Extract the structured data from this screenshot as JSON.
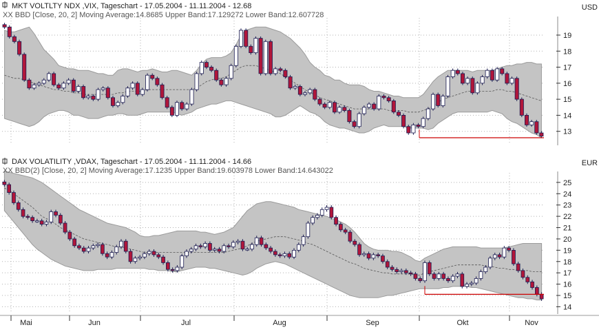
{
  "chart_data": [
    {
      "type": "candlestick",
      "header": "MKT VOLTLTY NDX  ,VIX, Tageschart - 17.05.2004 - 11.11.2004 - 12.68",
      "subheader": "XX BBD [Close, 20, 2] Moving Average:14.8685 Upper Band:17.129272 Lower Band:12.607728",
      "currency": "USD",
      "ylim": [
        12.3,
        19.9
      ],
      "yticks": [
        "13",
        "14",
        "15",
        "16",
        "17",
        "18",
        "19"
      ],
      "support_line": 12.6,
      "grid": true,
      "series": [
        {
          "name": "price",
          "close": [
            19.5,
            18.9,
            18.6,
            17.8,
            16.2,
            15.7,
            15.9,
            16.0,
            16.2,
            16.6,
            15.9,
            15.7,
            16.0,
            16.2,
            15.5,
            15.8,
            15.1,
            15.2,
            15.0,
            15.6,
            15.7,
            15.1,
            14.6,
            14.8,
            15.2,
            15.7,
            16.0,
            15.3,
            15.6,
            16.5,
            16.3,
            15.9,
            15.1,
            14.5,
            14.0,
            14.8,
            14.4,
            14.7,
            15.6,
            16.6,
            17.3,
            17.0,
            16.8,
            16.2,
            15.9,
            16.3,
            17.1,
            18.3,
            19.3,
            18.3,
            17.9,
            18.8,
            16.6,
            18.6,
            16.6,
            16.9,
            16.8,
            16.4,
            15.7,
            15.8,
            15.3,
            15.4,
            15.6,
            15.0,
            14.7,
            14.5,
            14.8,
            14.2,
            14.5,
            14.3,
            13.6,
            13.3,
            14.1,
            14.5,
            14.7,
            14.4,
            15.2,
            15.1,
            14.9,
            14.2,
            14.0,
            13.3,
            12.9,
            13.4,
            13.3,
            13.8,
            14.4,
            15.3,
            14.6,
            15.2,
            16.4,
            16.8,
            16.6,
            16.0,
            16.3,
            15.4,
            16.0,
            16.4,
            16.8,
            16.2,
            16.9,
            16.6,
            16.0,
            16.3,
            15.0,
            14.0,
            13.4,
            13.6,
            12.9,
            12.7
          ]
        }
      ],
      "bands": {
        "upper": [
          19.3,
          19.2,
          19.2,
          19.3,
          19.4,
          19.5,
          19.1,
          18.6,
          18.1,
          17.8,
          17.5,
          17.1,
          17.0,
          16.9,
          16.9,
          16.8,
          16.8,
          16.8,
          16.7,
          16.6,
          16.6,
          16.5,
          16.5,
          16.8,
          16.9,
          16.9,
          16.8,
          16.7,
          16.8,
          16.8,
          16.9,
          16.8,
          16.7,
          16.7,
          16.8,
          16.8,
          16.7,
          16.6,
          16.5,
          16.8,
          17.2,
          17.5,
          17.6,
          17.6,
          17.6,
          17.7,
          17.9,
          18.4,
          19.0,
          19.3,
          19.4,
          19.5,
          19.5,
          19.5,
          19.4,
          19.3,
          19.2,
          19.0,
          18.8,
          18.5,
          18.2,
          17.8,
          17.3,
          17.0,
          16.8,
          16.5,
          16.4,
          16.2,
          16.2,
          16.0,
          15.9,
          15.9,
          15.9,
          15.8,
          15.6,
          15.5,
          15.5,
          15.4,
          15.3,
          15.2,
          15.2,
          15.1,
          15.1,
          15.1,
          15.1,
          15.3,
          15.7,
          16.1,
          16.4,
          16.6,
          16.8,
          16.8,
          16.8,
          16.8,
          16.8,
          16.7,
          16.8,
          16.8,
          16.8,
          16.8,
          16.9,
          17.0,
          17.1,
          17.1,
          17.2,
          17.2,
          17.3,
          17.3,
          17.2,
          17.2
        ],
        "middle": [
          16.5,
          16.4,
          16.3,
          16.3,
          16.2,
          16.1,
          16.0,
          15.9,
          15.8,
          15.7,
          15.6,
          15.6,
          15.5,
          15.5,
          15.4,
          15.4,
          15.3,
          15.3,
          15.3,
          15.3,
          15.3,
          15.3,
          15.3,
          15.4,
          15.4,
          15.5,
          15.5,
          15.5,
          15.5,
          15.6,
          15.6,
          15.6,
          15.6,
          15.6,
          15.6,
          15.6,
          15.6,
          15.6,
          15.6,
          15.7,
          15.9,
          16.1,
          16.2,
          16.3,
          16.3,
          16.4,
          16.6,
          16.8,
          17.0,
          17.1,
          17.1,
          17.1,
          17.0,
          16.9,
          16.8,
          16.7,
          16.6,
          16.4,
          16.2,
          16.0,
          15.8,
          15.6,
          15.4,
          15.3,
          15.1,
          15.0,
          14.9,
          14.8,
          14.7,
          14.6,
          14.5,
          14.4,
          14.4,
          14.4,
          14.4,
          14.4,
          14.4,
          14.4,
          14.3,
          14.3,
          14.3,
          14.3,
          14.2,
          14.2,
          14.2,
          14.3,
          14.4,
          14.6,
          14.8,
          15.0,
          15.1,
          15.2,
          15.3,
          15.4,
          15.5,
          15.5,
          15.5,
          15.5,
          15.5,
          15.5,
          15.6,
          15.6,
          15.5,
          15.5,
          15.4,
          15.3,
          15.2,
          15.1,
          15.0,
          14.9
        ],
        "lower": [
          13.8,
          13.7,
          13.6,
          13.5,
          13.4,
          13.3,
          13.4,
          13.6,
          13.9,
          14.1,
          14.2,
          14.3,
          14.3,
          14.2,
          14.0,
          14.0,
          13.9,
          13.8,
          13.8,
          13.8,
          13.9,
          14.0,
          14.0,
          14.1,
          14.1,
          14.0,
          14.0,
          14.0,
          14.1,
          14.2,
          14.2,
          14.2,
          14.2,
          14.2,
          14.2,
          14.1,
          14.0,
          14.1,
          14.2,
          14.4,
          14.5,
          14.6,
          14.7,
          14.7,
          14.8,
          14.9,
          14.9,
          14.8,
          14.7,
          14.6,
          14.5,
          14.4,
          14.3,
          14.2,
          14.1,
          13.9,
          13.9,
          14.0,
          14.2,
          14.4,
          14.6,
          14.4,
          14.2,
          14.1,
          13.9,
          13.6,
          13.4,
          13.3,
          13.2,
          13.2,
          13.1,
          13.0,
          12.9,
          12.9,
          13.0,
          13.2,
          13.3,
          13.4,
          13.3,
          13.3,
          13.3,
          13.3,
          13.2,
          13.2,
          13.2,
          13.2,
          13.1,
          13.2,
          13.5,
          13.7,
          13.9,
          14.1,
          14.2,
          14.2,
          14.2,
          14.2,
          14.2,
          14.2,
          14.2,
          14.3,
          14.2,
          14.1,
          13.8,
          13.6,
          13.5,
          13.3,
          13.1,
          12.9,
          12.8,
          12.6
        ]
      }
    },
    {
      "type": "candlestick",
      "header": "DAX VOLATILITY    ,VDAX, Tageschart - 17.05.2004 - 11.11.2004 - 14.66",
      "subheader": "XX BBD(2) [Close, 20, 2] Moving Average:17.1235 Upper Band:19.603978 Lower Band:14.643022",
      "currency": "EUR",
      "ylim": [
        13.6,
        25.6
      ],
      "yticks": [
        "14",
        "15",
        "16",
        "17",
        "18",
        "19",
        "20",
        "21",
        "22",
        "23",
        "24",
        "25"
      ],
      "support_line": 15.1,
      "grid": true,
      "series": [
        {
          "name": "price",
          "close": [
            24.8,
            24.1,
            23.2,
            22.6,
            22.0,
            21.9,
            21.6,
            21.6,
            21.3,
            21.5,
            22.4,
            22.1,
            21.4,
            20.6,
            20.0,
            19.4,
            19.2,
            18.9,
            19.2,
            19.4,
            19.5,
            18.7,
            18.4,
            18.8,
            19.3,
            19.8,
            18.9,
            18.0,
            18.3,
            18.4,
            18.7,
            18.9,
            18.6,
            18.4,
            17.9,
            17.3,
            17.2,
            17.5,
            18.5,
            18.9,
            19.1,
            19.4,
            19.3,
            19.6,
            19.0,
            19.1,
            18.9,
            19.4,
            19.3,
            19.7,
            19.8,
            19.1,
            19.1,
            19.5,
            20.1,
            19.5,
            19.2,
            18.9,
            18.6,
            18.5,
            18.7,
            18.4,
            19.0,
            19.5,
            20.2,
            21.4,
            21.9,
            22.1,
            22.6,
            22.8,
            21.9,
            21.3,
            20.8,
            20.6,
            19.8,
            19.5,
            18.6,
            18.7,
            18.3,
            18.6,
            18.5,
            18.0,
            17.5,
            17.3,
            17.1,
            17.2,
            17.0,
            16.9,
            16.5,
            16.3,
            17.9,
            16.9,
            16.5,
            16.9,
            16.5,
            16.3,
            16.7,
            16.9,
            15.8,
            16.0,
            16.1,
            16.5,
            17.1,
            17.5,
            18.3,
            18.6,
            18.4,
            19.2,
            19.0,
            17.8,
            17.2,
            16.6,
            16.2,
            15.7,
            15.1,
            14.7
          ]
        }
      ],
      "bands": {
        "upper": [
          26.0,
          25.9,
          25.8,
          25.7,
          25.6,
          25.5,
          25.4,
          25.2,
          25.0,
          24.7,
          24.4,
          24.1,
          23.8,
          23.5,
          23.2,
          22.9,
          22.6,
          22.4,
          22.2,
          22.0,
          21.8,
          21.6,
          21.4,
          21.3,
          21.2,
          21.1,
          21.0,
          20.8,
          20.6,
          20.3,
          20.2,
          20.2,
          20.3,
          20.3,
          20.4,
          20.5,
          20.6,
          20.7,
          20.7,
          20.7,
          20.7,
          20.7,
          20.6,
          20.6,
          20.5,
          20.4,
          20.5,
          20.6,
          20.8,
          21.0,
          21.5,
          22.0,
          22.5,
          22.8,
          23.1,
          23.2,
          23.3,
          23.3,
          23.2,
          23.1,
          23.0,
          22.9,
          22.8,
          22.6,
          22.5,
          22.4,
          22.3,
          22.2,
          22.1,
          22.0,
          21.8,
          21.7,
          21.5,
          21.3,
          21.0,
          20.6,
          20.1,
          19.6,
          19.3,
          19.1,
          19.0,
          19.0,
          19.0,
          18.9,
          18.9,
          18.8,
          18.6,
          18.4,
          18.1,
          18.0,
          18.3,
          18.5,
          18.7,
          18.9,
          19.1,
          19.2,
          19.3,
          19.3,
          19.3,
          19.3,
          19.3,
          19.3,
          19.2,
          19.2,
          19.2,
          19.2,
          19.2,
          19.2,
          19.3,
          19.4,
          19.5,
          19.6,
          19.6,
          19.6,
          19.6,
          19.6
        ],
        "middle": [
          24.5,
          24.3,
          24.0,
          23.7,
          23.4,
          23.1,
          22.8,
          22.4,
          22.0,
          21.8,
          21.6,
          21.3,
          21.0,
          20.8,
          20.6,
          20.4,
          20.2,
          20.0,
          19.9,
          19.8,
          19.7,
          19.6,
          19.5,
          19.4,
          19.3,
          19.3,
          19.2,
          19.1,
          19.0,
          18.9,
          18.8,
          18.8,
          18.8,
          18.8,
          18.8,
          18.8,
          18.8,
          18.8,
          18.8,
          18.8,
          18.8,
          18.8,
          18.8,
          18.8,
          18.8,
          18.8,
          18.8,
          18.8,
          18.9,
          19.0,
          19.1,
          19.2,
          19.4,
          19.6,
          19.8,
          19.9,
          20.0,
          20.1,
          20.2,
          20.2,
          20.2,
          20.1,
          20.0,
          19.9,
          19.8,
          19.6,
          19.5,
          19.3,
          19.1,
          18.9,
          18.7,
          18.5,
          18.3,
          18.1,
          17.9,
          17.8,
          17.6,
          17.4,
          17.3,
          17.2,
          17.1,
          17.0,
          17.0,
          16.9,
          16.9,
          16.9,
          16.9,
          16.9,
          16.8,
          16.8,
          17.0,
          17.1,
          17.2,
          17.3,
          17.4,
          17.5,
          17.6,
          17.7,
          17.7,
          17.7,
          17.7,
          17.7,
          17.7,
          17.6,
          17.6,
          17.5,
          17.4,
          17.4,
          17.3,
          17.3,
          17.2,
          17.2,
          17.2,
          17.1,
          17.1,
          17.1
        ],
        "lower": [
          22.5,
          22.0,
          21.5,
          21.0,
          20.5,
          20.0,
          19.5,
          19.1,
          18.8,
          18.5,
          18.2,
          18.0,
          17.8,
          17.6,
          17.5,
          17.4,
          17.3,
          17.2,
          17.2,
          17.2,
          17.3,
          17.3,
          17.3,
          17.3,
          17.4,
          17.4,
          17.4,
          17.4,
          17.4,
          17.4,
          17.4,
          17.3,
          17.3,
          17.2,
          17.2,
          17.2,
          17.1,
          17.1,
          17.2,
          17.3,
          17.4,
          17.5,
          17.5,
          17.5,
          17.4,
          17.4,
          17.3,
          17.2,
          17.1,
          17.0,
          16.9,
          16.8,
          16.9,
          17.1,
          17.4,
          17.6,
          17.8,
          17.9,
          18.0,
          17.9,
          17.8,
          17.6,
          17.4,
          17.2,
          17.0,
          16.8,
          16.6,
          16.4,
          16.2,
          16.0,
          15.8,
          15.6,
          15.4,
          15.2,
          15.0,
          14.9,
          14.8,
          14.8,
          14.8,
          14.8,
          14.8,
          14.9,
          15.0,
          15.0,
          15.1,
          15.2,
          15.3,
          15.4,
          15.5,
          15.6,
          15.6,
          15.6,
          15.6,
          15.6,
          15.7,
          15.7,
          15.8,
          15.8,
          15.8,
          15.8,
          15.7,
          15.7,
          15.6,
          15.5,
          15.4,
          15.3,
          15.2,
          15.1,
          15.0,
          14.9,
          14.8,
          14.8,
          14.7,
          14.7,
          14.6,
          14.6
        ]
      }
    }
  ],
  "x_axis": {
    "labels": [
      "Mai",
      "Jun",
      "Jul",
      "Aug",
      "Sep",
      "Okt",
      "Nov"
    ]
  },
  "colors": {
    "up_body": "#ffffff",
    "down_body": "#b0163a",
    "wick": "#1a1a50",
    "band_fill": "#c4c4c4",
    "band_edge": "#9a9a9a",
    "middle_line": "#555555",
    "support_line": "#cc0000",
    "grid": "#b0b0b0",
    "text": "#222222"
  }
}
